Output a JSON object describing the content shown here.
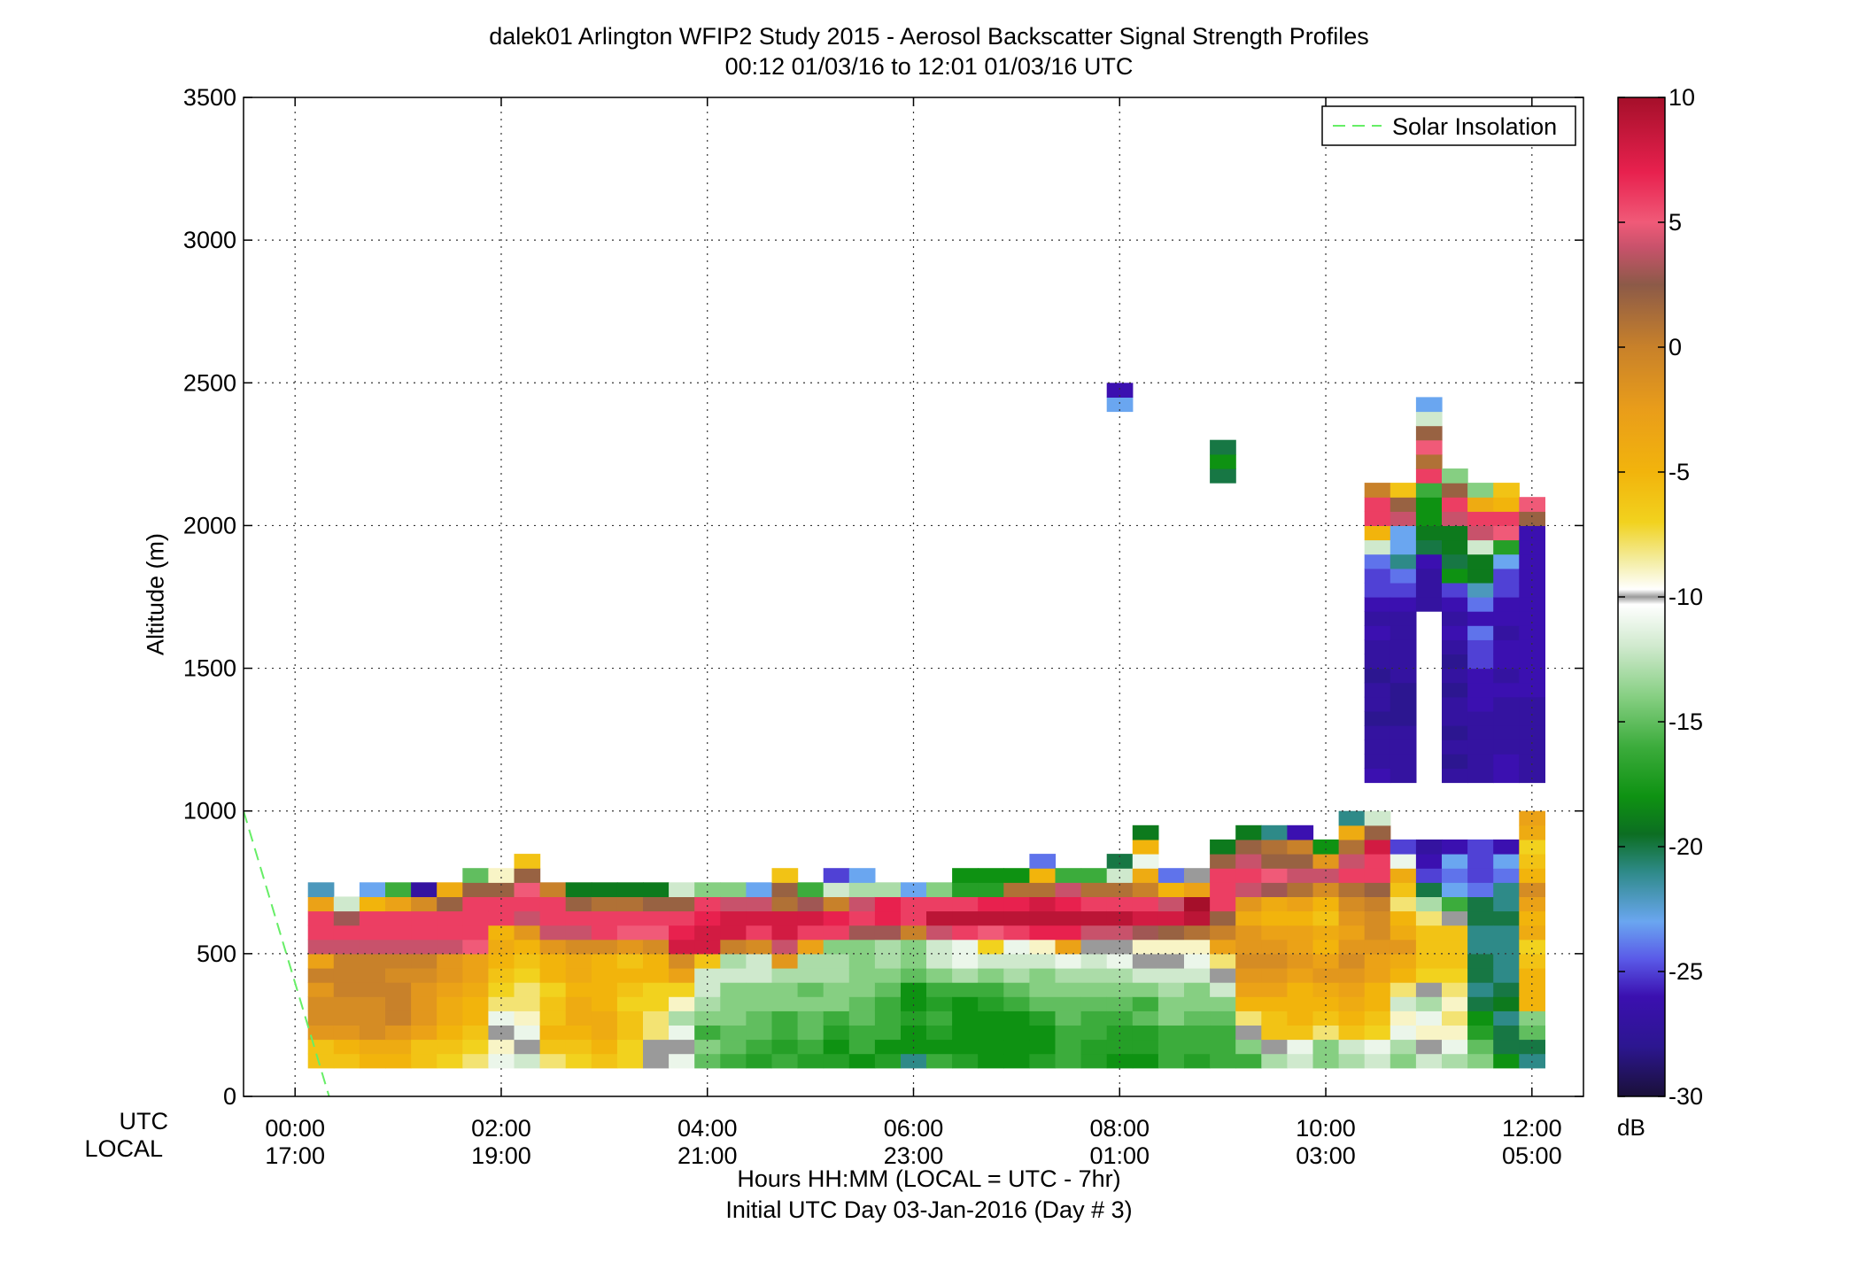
{
  "chart_data": {
    "type": "heatmap",
    "title": "dalek01 Arlington WFIP2 Study 2015 - Aerosol Backscatter Signal Strength Profiles",
    "subtitle": "00:12 01/03/16 to 12:01 01/03/16  UTC",
    "ylabel": "Altitude (m)",
    "xlabel": "Hours HH:MM  (LOCAL = UTC - 7hr)",
    "xlabel2": "Initial UTC Day 03-Jan-2016 (Day # 3)",
    "x_row_labels": [
      "UTC",
      "LOCAL"
    ],
    "x_ticks_utc": [
      "00:00",
      "02:00",
      "04:00",
      "06:00",
      "08:00",
      "10:00",
      "12:00"
    ],
    "x_ticks_local": [
      "17:00",
      "19:00",
      "21:00",
      "23:00",
      "01:00",
      "03:00",
      "05:00"
    ],
    "x_tick_hours": [
      0,
      2,
      4,
      6,
      8,
      10,
      12
    ],
    "xlim_hours": [
      -0.5,
      12.5
    ],
    "y_ticks": [
      0,
      500,
      1000,
      1500,
      2000,
      2500,
      3000,
      3500
    ],
    "ylim": [
      0,
      3500
    ],
    "grid": true,
    "legend": {
      "placement": "top-right",
      "entries": [
        {
          "name": "Solar Insolation",
          "style": "dashed",
          "color": "#66ee66"
        }
      ]
    },
    "solar_insolation": {
      "x": [
        -0.5,
        0.33
      ],
      "y": [
        1000,
        0
      ]
    },
    "colorbar": {
      "label": "dB",
      "range": [
        -30,
        10
      ],
      "ticks": [
        10,
        5,
        0,
        -5,
        -10,
        -15,
        -20,
        -25,
        -30
      ],
      "stops": [
        {
          "v": 10,
          "c": "#a50f2a"
        },
        {
          "v": 7,
          "c": "#e8214e"
        },
        {
          "v": 5,
          "c": "#f05a78"
        },
        {
          "v": 4,
          "c": "#c8526b"
        },
        {
          "v": 2.5,
          "c": "#8c5a48"
        },
        {
          "v": 0,
          "c": "#c8812a"
        },
        {
          "v": -2.5,
          "c": "#e99d1a"
        },
        {
          "v": -5,
          "c": "#f2b40c"
        },
        {
          "v": -7,
          "c": "#f2d21e"
        },
        {
          "v": -8.5,
          "c": "#f3ec9e"
        },
        {
          "v": -9.7,
          "c": "#ffffff"
        },
        {
          "v": -10,
          "c": "#9a9a9a"
        },
        {
          "v": -10.3,
          "c": "#ffffff"
        },
        {
          "v": -12,
          "c": "#cfe9cd"
        },
        {
          "v": -14,
          "c": "#86cf82"
        },
        {
          "v": -16,
          "c": "#3cac3c"
        },
        {
          "v": -18,
          "c": "#0e9212"
        },
        {
          "v": -19.5,
          "c": "#0c6e22"
        },
        {
          "v": -21,
          "c": "#2e8a88"
        },
        {
          "v": -23,
          "c": "#6aa6f0"
        },
        {
          "v": -24.5,
          "c": "#5a5ae8"
        },
        {
          "v": -26,
          "c": "#3b10b0"
        },
        {
          "v": -28,
          "c": "#2c1690"
        },
        {
          "v": -30,
          "c": "#1a1038"
        }
      ]
    },
    "bin_height_m": 50,
    "column_width_hours": 0.25,
    "columns": [
      {
        "t": 0.25,
        "base": 100,
        "dB": [
          -6,
          -6,
          -2,
          -1,
          -1,
          -2,
          0,
          -3,
          4,
          6,
          6,
          -3,
          -22
        ]
      },
      {
        "t": 0.5,
        "base": 100,
        "dB": [
          -6,
          -5,
          -2,
          -1,
          -1,
          0,
          0,
          0,
          4,
          6,
          3,
          -12
        ]
      },
      {
        "t": 0.75,
        "base": 100,
        "dB": [
          -5,
          -4,
          -1,
          -1,
          -1,
          0,
          0,
          0,
          4,
          6,
          6,
          -5,
          -23
        ]
      },
      {
        "t": 1.0,
        "base": 100,
        "dB": [
          -5,
          -4,
          -2,
          0,
          0,
          0,
          -1,
          0,
          4,
          6,
          6,
          -3,
          -16
        ]
      },
      {
        "t": 1.25,
        "base": 100,
        "dB": [
          -6,
          -6,
          -3,
          -2,
          -2,
          -2,
          -1,
          0,
          4,
          6,
          6,
          -1,
          -27
        ]
      },
      {
        "t": 1.5,
        "base": 100,
        "dB": [
          -7,
          -6,
          -5,
          -4,
          -4,
          -3,
          -2,
          -2,
          4,
          6,
          6,
          2,
          -4
        ]
      },
      {
        "t": 1.75,
        "base": 100,
        "dB": [
          -8,
          -7,
          -6,
          -5,
          -5,
          -4,
          -3,
          -3,
          5,
          6,
          6,
          6,
          2,
          -15
        ]
      },
      {
        "t": 2.0,
        "base": 100,
        "dB": [
          -11,
          -9,
          -10,
          -11,
          -8,
          -7,
          -6,
          -5,
          -4,
          -5,
          6,
          6,
          2,
          -9
        ]
      },
      {
        "t": 2.25,
        "base": 100,
        "dB": [
          -12,
          -10,
          -11,
          -9,
          -8,
          -8,
          -7,
          -6,
          -5,
          -2,
          4,
          6,
          5,
          2,
          -6
        ]
      },
      {
        "t": 2.5,
        "base": 100,
        "dB": [
          -8,
          -6,
          -5,
          -6,
          -6,
          -7,
          -5,
          -5,
          -2,
          4,
          6,
          6,
          0
        ]
      },
      {
        "t": 2.75,
        "base": 100,
        "dB": [
          -7,
          -6,
          -5,
          -4,
          -4,
          -5,
          -4,
          -4,
          -1,
          4,
          6,
          2,
          -19
        ]
      },
      {
        "t": 3.0,
        "base": 100,
        "dB": [
          -6,
          -5,
          -4,
          -4,
          -5,
          -5,
          -5,
          -5,
          -1,
          6,
          6,
          1,
          -19
        ]
      },
      {
        "t": 3.25,
        "base": 100,
        "dB": [
          -7,
          -7,
          -6,
          -6,
          -7,
          -6,
          -5,
          -6,
          -2,
          5,
          6,
          1,
          -19
        ]
      },
      {
        "t": 3.5,
        "base": 100,
        "dB": [
          -10,
          -10,
          -8,
          -8,
          -7,
          -7,
          -5,
          -5,
          -1,
          5,
          6,
          2,
          -19
        ]
      },
      {
        "t": 3.75,
        "base": 100,
        "dB": [
          -11,
          -10,
          -11,
          -13,
          -9,
          -7,
          -3,
          -1,
          8,
          7,
          6,
          2,
          -12
        ]
      },
      {
        "t": 4.0,
        "base": 100,
        "dB": [
          -15,
          -14,
          -16,
          -14,
          -13,
          -12,
          -12,
          -6,
          8,
          8,
          7,
          6,
          -14
        ]
      },
      {
        "t": 4.25,
        "base": 100,
        "dB": [
          -16,
          -15,
          -15,
          -14,
          -14,
          -14,
          -12,
          -13,
          0,
          8,
          8,
          4,
          -14
        ]
      },
      {
        "t": 4.5,
        "base": 100,
        "dB": [
          -17,
          -16,
          -15,
          -15,
          -14,
          -14,
          -12,
          -12,
          -1,
          6,
          8,
          4,
          -23
        ]
      },
      {
        "t": 4.75,
        "base": 100,
        "dB": [
          -16,
          -17,
          -16,
          -16,
          -14,
          -14,
          -13,
          -2,
          4,
          8,
          8,
          1,
          2,
          -6
        ]
      },
      {
        "t": 5.0,
        "base": 100,
        "dB": [
          -17,
          -16,
          -15,
          -15,
          -14,
          -15,
          -13,
          -13,
          -3,
          6,
          8,
          3,
          -16
        ]
      },
      {
        "t": 5.25,
        "base": 100,
        "dB": [
          -17,
          -18,
          -17,
          -16,
          -14,
          -14,
          -13,
          -13,
          -14,
          6,
          7,
          0,
          -12,
          -25
        ]
      },
      {
        "t": 5.5,
        "base": 100,
        "dB": [
          -18,
          -16,
          -16,
          -15,
          -15,
          -14,
          -14,
          -14,
          -14,
          3,
          6,
          4,
          -13,
          -23
        ]
      },
      {
        "t": 5.75,
        "base": 100,
        "dB": [
          -17,
          -18,
          -16,
          -16,
          -16,
          -15,
          -14,
          -13,
          -13,
          3,
          7,
          7,
          -13
        ]
      },
      {
        "t": 6.0,
        "base": 100,
        "dB": [
          -21,
          -18,
          -18,
          -17,
          -18,
          -18,
          -15,
          -14,
          -14,
          0,
          6,
          6,
          -23
        ]
      },
      {
        "t": 6.25,
        "base": 100,
        "dB": [
          -16,
          -18,
          -17,
          -16,
          -17,
          -16,
          -14,
          -12,
          -12,
          4,
          9,
          6,
          -14
        ]
      },
      {
        "t": 6.5,
        "base": 100,
        "dB": [
          -17,
          -18,
          -18,
          -18,
          -18,
          -16,
          -13,
          -11,
          -11,
          6,
          9,
          6,
          -17,
          -18
        ]
      },
      {
        "t": 6.75,
        "base": 100,
        "dB": [
          -18,
          -18,
          -18,
          -18,
          -17,
          -16,
          -14,
          -12,
          -7,
          5,
          9,
          7,
          -17,
          -18
        ]
      },
      {
        "t": 7.0,
        "base": 100,
        "dB": [
          -18,
          -18,
          -18,
          -18,
          -16,
          -15,
          -13,
          -12,
          -11,
          6,
          9,
          7,
          1,
          -18
        ]
      },
      {
        "t": 7.25,
        "base": 100,
        "dB": [
          -17,
          -18,
          -18,
          -17,
          -15,
          -14,
          -14,
          -12,
          -9,
          7,
          9,
          8,
          1,
          -5,
          -24
        ]
      },
      {
        "t": 7.5,
        "base": 100,
        "dB": [
          -16,
          -16,
          -16,
          -15,
          -15,
          -14,
          -13,
          -11,
          -3,
          7,
          9,
          7,
          4,
          -16
        ]
      },
      {
        "t": 7.75,
        "base": 100,
        "dB": [
          -17,
          -17,
          -16,
          -16,
          -15,
          -14,
          -13,
          -12,
          -10,
          4,
          9,
          6,
          1,
          -16
        ]
      },
      {
        "t": 8.0,
        "base": 100,
        "dB": [
          -18,
          -17,
          -17,
          -16,
          -15,
          -14,
          -13,
          -11,
          -10,
          4,
          9,
          6,
          1,
          -12,
          -20
        ]
      },
      {
        "t": 8.25,
        "base": 100,
        "dB": [
          -18,
          -17,
          -17,
          -15,
          -16,
          -14,
          -12,
          -10,
          -9,
          3,
          8,
          6,
          0,
          -4,
          -11,
          -5,
          -19
        ]
      },
      {
        "t": 8.5,
        "base": 100,
        "dB": [
          -16,
          -16,
          -16,
          -14,
          -14,
          -13,
          -12,
          -10,
          -9,
          2,
          8,
          4,
          -5,
          -24
        ]
      },
      {
        "t": 8.75,
        "base": 100,
        "dB": [
          -17,
          -16,
          -16,
          -15,
          -14,
          -14,
          -12,
          -11,
          -9,
          1,
          9,
          10,
          -3,
          -10
        ]
      },
      {
        "t": 9.0,
        "base": 100,
        "dB": [
          -16,
          -16,
          -16,
          -15,
          -14,
          -12,
          -10,
          -8,
          -3,
          0,
          2,
          6,
          6,
          6,
          2,
          -19
        ]
      },
      {
        "t": 9.25,
        "base": 100,
        "dB": [
          -16,
          -14,
          -10,
          -8,
          -5,
          -3,
          -2,
          -1,
          -2,
          -2,
          -4,
          -2,
          4,
          6,
          4,
          2,
          -19
        ]
      },
      {
        "t": 9.5,
        "base": 100,
        "dB": [
          -13,
          -10,
          -6,
          -6,
          -5,
          -3,
          -2,
          -1,
          -2,
          -3,
          -5,
          -4,
          3,
          5,
          2,
          1,
          -21
        ]
      },
      {
        "t": 9.75,
        "base": 100,
        "dB": [
          -12,
          -11,
          -6,
          -5,
          -5,
          -5,
          -3,
          -2,
          -3,
          -3,
          -5,
          -3,
          1,
          4,
          2,
          0,
          -26
        ]
      },
      {
        "t": 10.0,
        "base": 100,
        "dB": [
          -14,
          -14,
          -8,
          -6,
          -5,
          -4,
          -2,
          -3,
          -5,
          -4,
          -6,
          -5,
          -1,
          4,
          -2,
          -18
        ]
      },
      {
        "t": 10.25,
        "base": 100,
        "dB": [
          -13,
          -12,
          -6,
          -5,
          -4,
          -3,
          -2,
          -1,
          -2,
          -3,
          -2,
          -1,
          1,
          6,
          4,
          1,
          -4,
          -21
        ]
      },
      {
        "t": 10.5,
        "base": 100,
        "dB": [
          -12,
          -11,
          -7,
          -6,
          -5,
          -5,
          -3,
          -3,
          -2,
          -1,
          -1,
          0,
          2,
          6,
          6,
          8,
          2,
          -12
        ]
      },
      {
        "t": 10.75,
        "base": 100,
        "dB": [
          -14,
          -13,
          -11,
          -9,
          -12,
          -8,
          -5,
          -4,
          -2,
          -4,
          -5,
          -8,
          -6,
          -4,
          -11,
          -25
        ]
      },
      {
        "t": 11.0,
        "base": 100,
        "dB": [
          -12,
          -10,
          -9,
          -11,
          -13,
          -10,
          -7,
          -6,
          -6,
          -6,
          -8,
          -13,
          -20,
          -25,
          -26,
          -27
        ]
      },
      {
        "t": 11.25,
        "base": 100,
        "dB": [
          -13,
          -11,
          -9,
          -8,
          -9,
          -8,
          -7,
          -6,
          -6,
          -6,
          -10,
          -16,
          -23,
          -24,
          -23,
          -26
        ]
      },
      {
        "t": 11.5,
        "base": 100,
        "dB": [
          -14,
          -15,
          -17,
          -18,
          -20,
          -21,
          -20,
          -20,
          -21,
          -21,
          -20,
          -20,
          -24,
          -25,
          -25,
          -25
        ]
      },
      {
        "t": 11.75,
        "base": 100,
        "dB": [
          -18,
          -20,
          -20,
          -21,
          -19,
          -20,
          -21,
          -21,
          -21,
          -21,
          -20,
          -21,
          -21,
          -24,
          -23,
          -26
        ]
      },
      {
        "t": 12.0,
        "base": 100,
        "dB": [
          -21,
          -20,
          -15,
          -14,
          -5,
          -5,
          -5,
          -6,
          -7,
          -4,
          -5,
          -3,
          -1,
          -5,
          -6,
          -7,
          -4,
          -3
        ]
      }
    ],
    "upper_cells": [
      {
        "t": 8.0,
        "z0": 2400,
        "dB": [
          -23,
          -26
        ]
      },
      {
        "t": 9.0,
        "z0": 2150,
        "dB": [
          -20,
          -18,
          -20
        ]
      },
      {
        "t": 10.5,
        "z0": 1100,
        "dB": [
          -26,
          -27,
          -27,
          -27,
          -28,
          -27,
          -27,
          -28,
          -27,
          -27,
          -26,
          -27,
          -26,
          -25,
          -25,
          -24,
          -12,
          -5,
          6,
          6,
          0
        ]
      },
      {
        "t": 10.75,
        "z0": 1100,
        "dB": [
          -27,
          -27,
          -27,
          -27,
          -28,
          -28,
          -28,
          -27,
          -27,
          -27,
          -27,
          -27,
          -26,
          -25,
          -24,
          -21,
          -23,
          -23,
          4,
          2,
          -6
        ]
      },
      {
        "t": 11.0,
        "z0": 1700,
        "dB": [
          -27,
          -27,
          -27,
          -26,
          -20,
          -19,
          -18,
          -18,
          -16,
          6,
          1,
          5,
          2,
          -12,
          -23
        ]
      },
      {
        "t": 11.25,
        "z0": 1100,
        "dB": [
          -27,
          -28,
          -27,
          -28,
          -27,
          -27,
          -28,
          -27,
          -28,
          -27,
          -26,
          -27,
          -26,
          -25,
          -18,
          -20,
          -19,
          -19,
          4,
          6,
          2,
          -14
        ]
      },
      {
        "t": 11.5,
        "z0": 1100,
        "dB": [
          -27,
          -27,
          -27,
          -27,
          -27,
          -26,
          -26,
          -26,
          -25,
          -25,
          -24,
          -26,
          -24,
          -22,
          -19,
          -19,
          -12,
          4,
          6,
          -4,
          -14
        ]
      },
      {
        "t": 11.75,
        "z0": 1100,
        "dB": [
          -26,
          -26,
          -27,
          -27,
          -27,
          -27,
          -26,
          -27,
          -26,
          -26,
          -27,
          -26,
          -26,
          -25,
          -25,
          -23,
          -17,
          5,
          6,
          -5,
          -6
        ]
      },
      {
        "t": 12.0,
        "z0": 1100,
        "dB": [
          -27,
          -27,
          -27,
          -27,
          -27,
          -27,
          -26,
          -26,
          -26,
          -26,
          -26,
          -26,
          -26,
          -26,
          -26,
          -26,
          -26,
          -26,
          2,
          5
        ]
      }
    ]
  }
}
